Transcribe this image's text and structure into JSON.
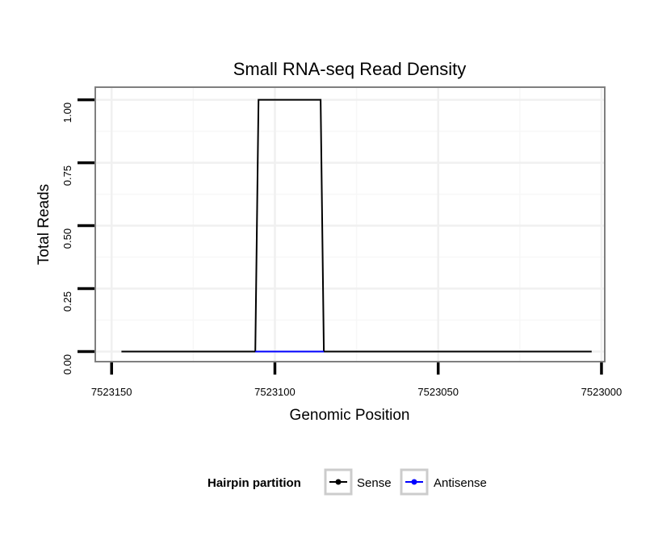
{
  "chart_data": {
    "type": "line",
    "title": "Small RNA-seq Read Density",
    "xlabel": "Genomic Position",
    "ylabel": "Total Reads",
    "xlim": [
      7523155,
      7522999
    ],
    "x_reversed": true,
    "ylim": [
      -0.04,
      1.05
    ],
    "xticks": [
      7523150,
      7523100,
      7523050,
      7523000
    ],
    "xtick_labels": [
      "7523150",
      "7523100",
      "7523050",
      "7523000"
    ],
    "yticks": [
      0,
      0.25,
      0.5,
      0.75,
      1.0
    ],
    "ytick_labels": [
      "0.00",
      "0.25",
      "0.50",
      "0.75",
      "1.00"
    ],
    "grid": true,
    "legend": {
      "title": "Hairpin partition",
      "position": "bottom",
      "entries": [
        "Sense",
        "Antisense"
      ]
    },
    "series": [
      {
        "name": "Sense",
        "color": "#000000",
        "x": [
          7523147,
          7523106,
          7523105,
          7523086,
          7523085,
          7523003
        ],
        "y": [
          0,
          0,
          1,
          1,
          0,
          0
        ]
      },
      {
        "name": "Antisense",
        "color": "#0000ff",
        "x": [
          7523106,
          7523085
        ],
        "y": [
          0,
          0
        ]
      }
    ]
  }
}
